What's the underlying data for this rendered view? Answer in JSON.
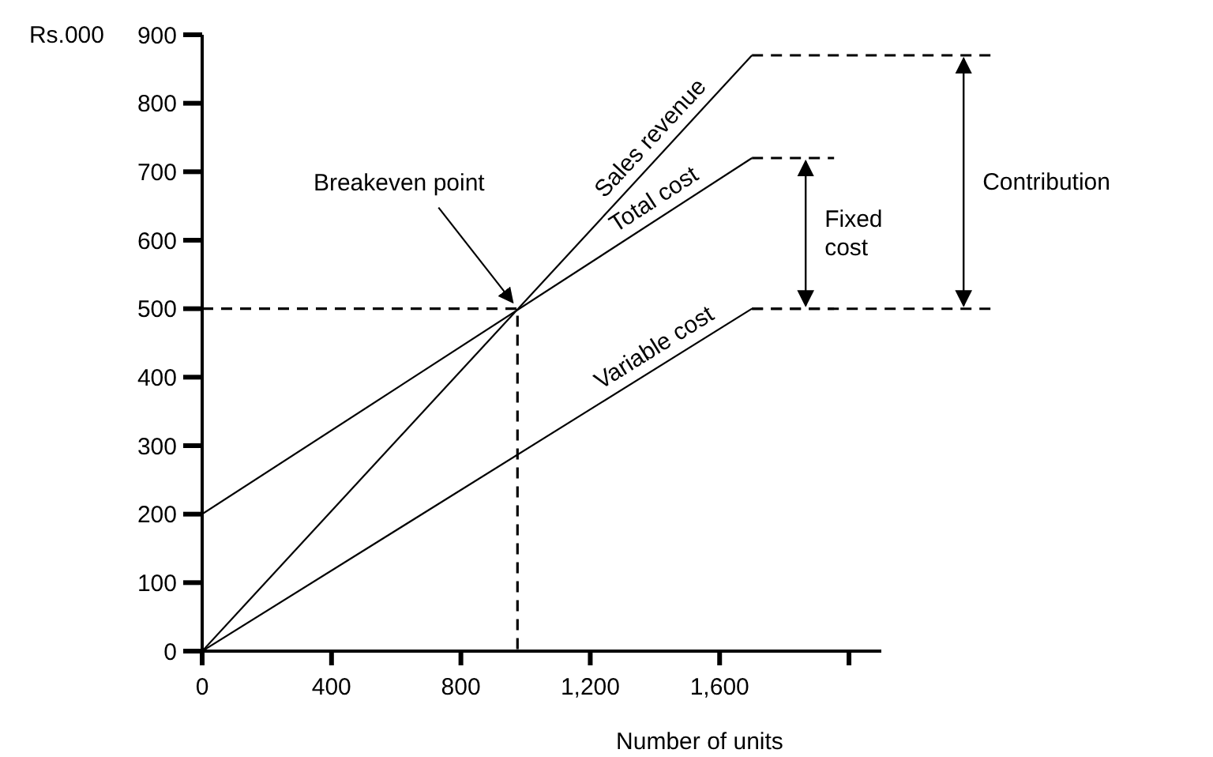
{
  "chart_data": {
    "type": "line",
    "xlabel": "Number of units",
    "ylabel": "Rs.000",
    "xlim": [
      0,
      2100
    ],
    "ylim": [
      0,
      900
    ],
    "xticks": [
      0,
      400,
      800,
      {
        "value": 1200,
        "label": "1,200"
      },
      {
        "value": 1600,
        "label": "1,600"
      },
      {
        "value": 2000,
        "label": null
      }
    ],
    "yticks": [
      0,
      100,
      200,
      300,
      400,
      500,
      600,
      700,
      800,
      900
    ],
    "marker": "none",
    "line_style": "solid",
    "series": [
      {
        "name": "Sales revenue",
        "color": "#000000",
        "x": [
          0,
          1700
        ],
        "values": [
          0,
          870
        ]
      },
      {
        "name": "Total cost",
        "color": "#000000",
        "x": [
          0,
          1700
        ],
        "values": [
          200,
          720
        ]
      },
      {
        "name": "Variable cost",
        "color": "#000000",
        "x": [
          0,
          1700
        ],
        "values": [
          0,
          500
        ]
      },
      {
        "color": "#000000",
        "line_style": "dashed",
        "x": [
          0,
          975,
          975
        ],
        "values": [
          500,
          500,
          0
        ]
      }
    ],
    "annotations": [
      {
        "text": "Breakeven point",
        "x": 975,
        "y": 500
      },
      "Fixed cost",
      "Contribution"
    ]
  }
}
